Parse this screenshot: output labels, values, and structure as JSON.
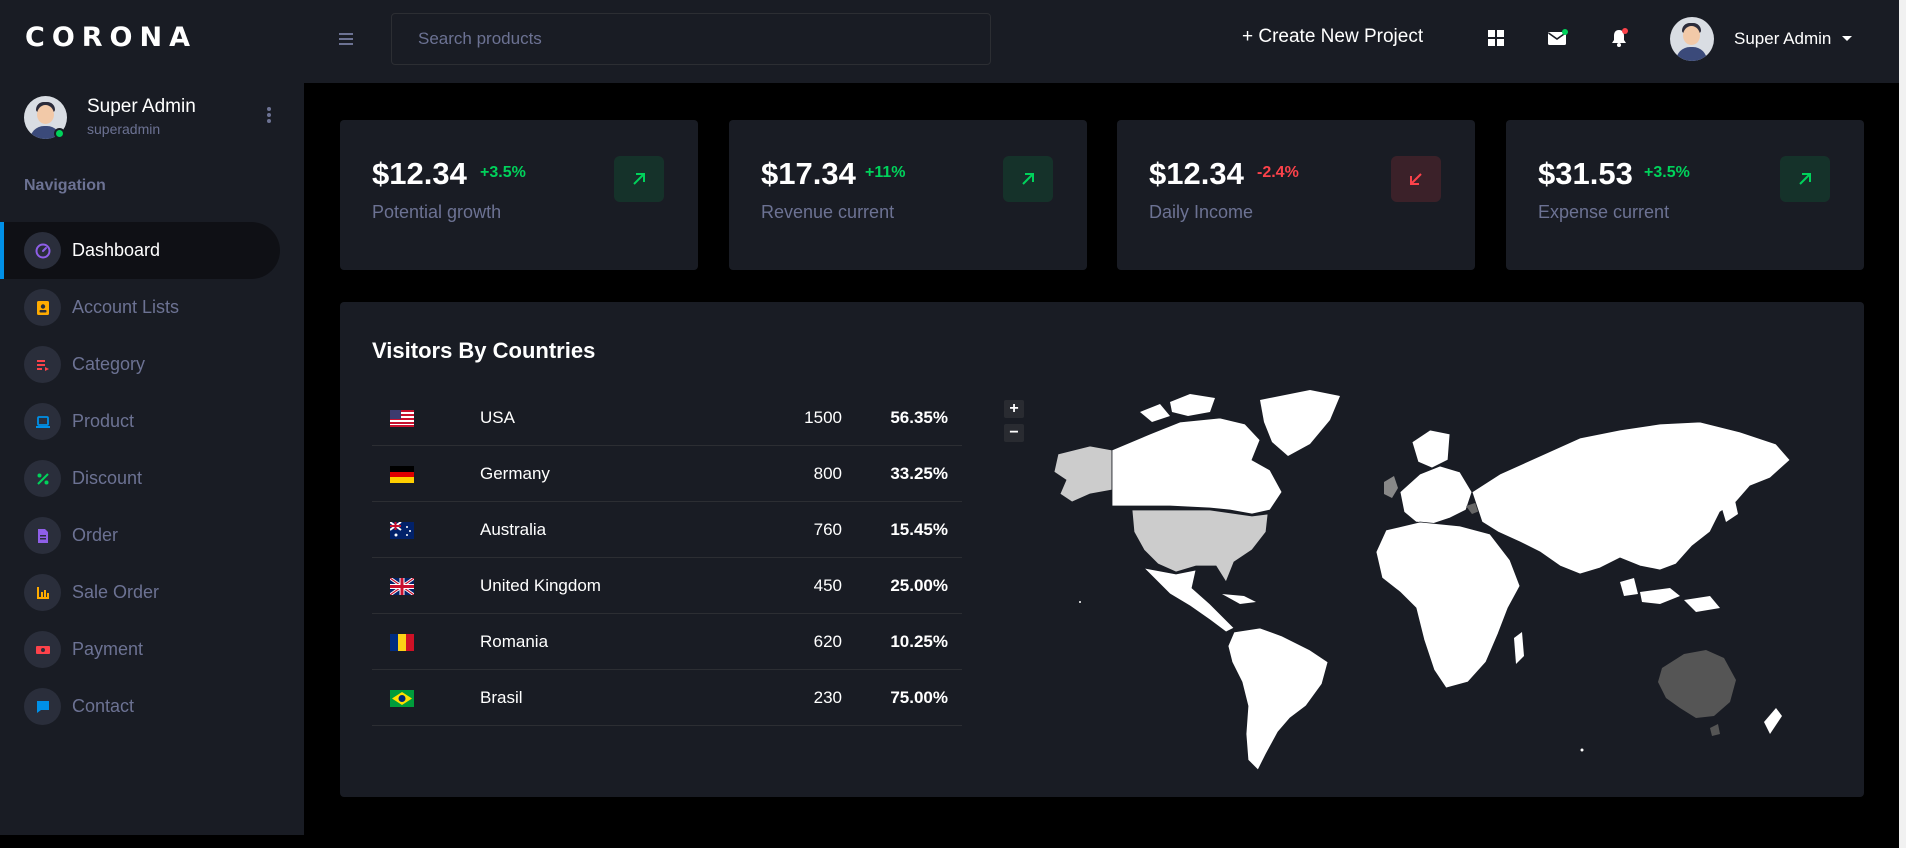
{
  "brand": "CORONA",
  "profile": {
    "name": "Super Admin",
    "handle": "superadmin"
  },
  "nav": {
    "title": "Navigation",
    "items": [
      {
        "label": "Dashboard",
        "icon": "speedometer-icon",
        "color": "#8f5fe8"
      },
      {
        "label": "Account Lists",
        "icon": "contact-card-icon",
        "color": "#ffab00"
      },
      {
        "label": "Category",
        "icon": "playlist-icon",
        "color": "#fc424a"
      },
      {
        "label": "Product",
        "icon": "laptop-icon",
        "color": "#0090e7"
      },
      {
        "label": "Discount",
        "icon": "percent-icon",
        "color": "#00d25b"
      },
      {
        "label": "Order",
        "icon": "document-icon",
        "color": "#8f5fe8"
      },
      {
        "label": "Sale Order",
        "icon": "bar-chart-icon",
        "color": "#ffab00"
      },
      {
        "label": "Payment",
        "icon": "money-icon",
        "color": "#fc424a"
      },
      {
        "label": "Contact",
        "icon": "chat-icon",
        "color": "#0090e7"
      }
    ]
  },
  "topbar": {
    "search_placeholder": "Search products",
    "create_label": "+ Create New Project",
    "user_name": "Super Admin"
  },
  "cards": [
    {
      "value": "$12.34",
      "change": "+3.5%",
      "label": "Potential growth",
      "trend": "up"
    },
    {
      "value": "$17.34",
      "change": "+11%",
      "label": "Revenue current",
      "trend": "up"
    },
    {
      "value": "$12.34",
      "change": "-2.4%",
      "label": "Daily Income",
      "trend": "down"
    },
    {
      "value": "$31.53",
      "change": "+3.5%",
      "label": "Expense current",
      "trend": "up"
    }
  ],
  "visitors": {
    "title": "Visitors By Countries",
    "rows": [
      {
        "flag": "us-flag-icon",
        "country": "USA",
        "count": "1500",
        "pct": "56.35%"
      },
      {
        "flag": "de-flag-icon",
        "country": "Germany",
        "count": "800",
        "pct": "33.25%"
      },
      {
        "flag": "au-flag-icon",
        "country": "Australia",
        "count": "760",
        "pct": "15.45%"
      },
      {
        "flag": "gb-flag-icon",
        "country": "United Kingdom",
        "count": "450",
        "pct": "25.00%"
      },
      {
        "flag": "ro-flag-icon",
        "country": "Romania",
        "count": "620",
        "pct": "10.25%"
      },
      {
        "flag": "br-flag-icon",
        "country": "Brasil",
        "count": "230",
        "pct": "75.00%"
      }
    ],
    "zoom_in": "+",
    "zoom_out": "−"
  },
  "colors": {
    "success": "#00d25b",
    "danger": "#fc424a",
    "muted": "#6c7293",
    "panel": "#191c24",
    "accent": "#0090e7"
  }
}
